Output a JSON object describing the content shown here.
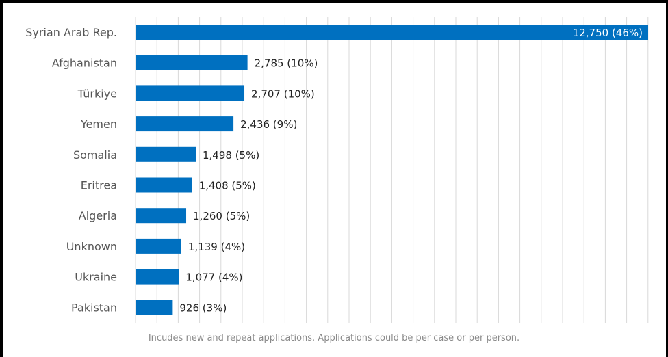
{
  "chart_data": {
    "type": "bar",
    "orientation": "horizontal",
    "categories": [
      "Syrian Arab Rep.",
      "Afghanistan",
      "Türkiye",
      "Yemen",
      "Somalia",
      "Eritrea",
      "Algeria",
      "Unknown",
      "Ukraine",
      "Pakistan"
    ],
    "values": [
      12750,
      2785,
      2707,
      2436,
      1498,
      1408,
      1260,
      1139,
      1077,
      926
    ],
    "data_labels": [
      "12,750 (46%)",
      "2,785 (10%)",
      "2,707 (10%)",
      "2,436 (9%)",
      "1,498 (5%)",
      "1,408 (5%)",
      "1,260 (5%)",
      "1,139 (4%)",
      "1,077 (4%)",
      "926 (3%)"
    ],
    "xlim": [
      0,
      12750
    ],
    "grid": true,
    "bar_color": "#0070c0",
    "title": "",
    "xlabel": "",
    "ylabel": ""
  },
  "footnote": "Incudes new and repeat applications. Applications could be per case or per person."
}
